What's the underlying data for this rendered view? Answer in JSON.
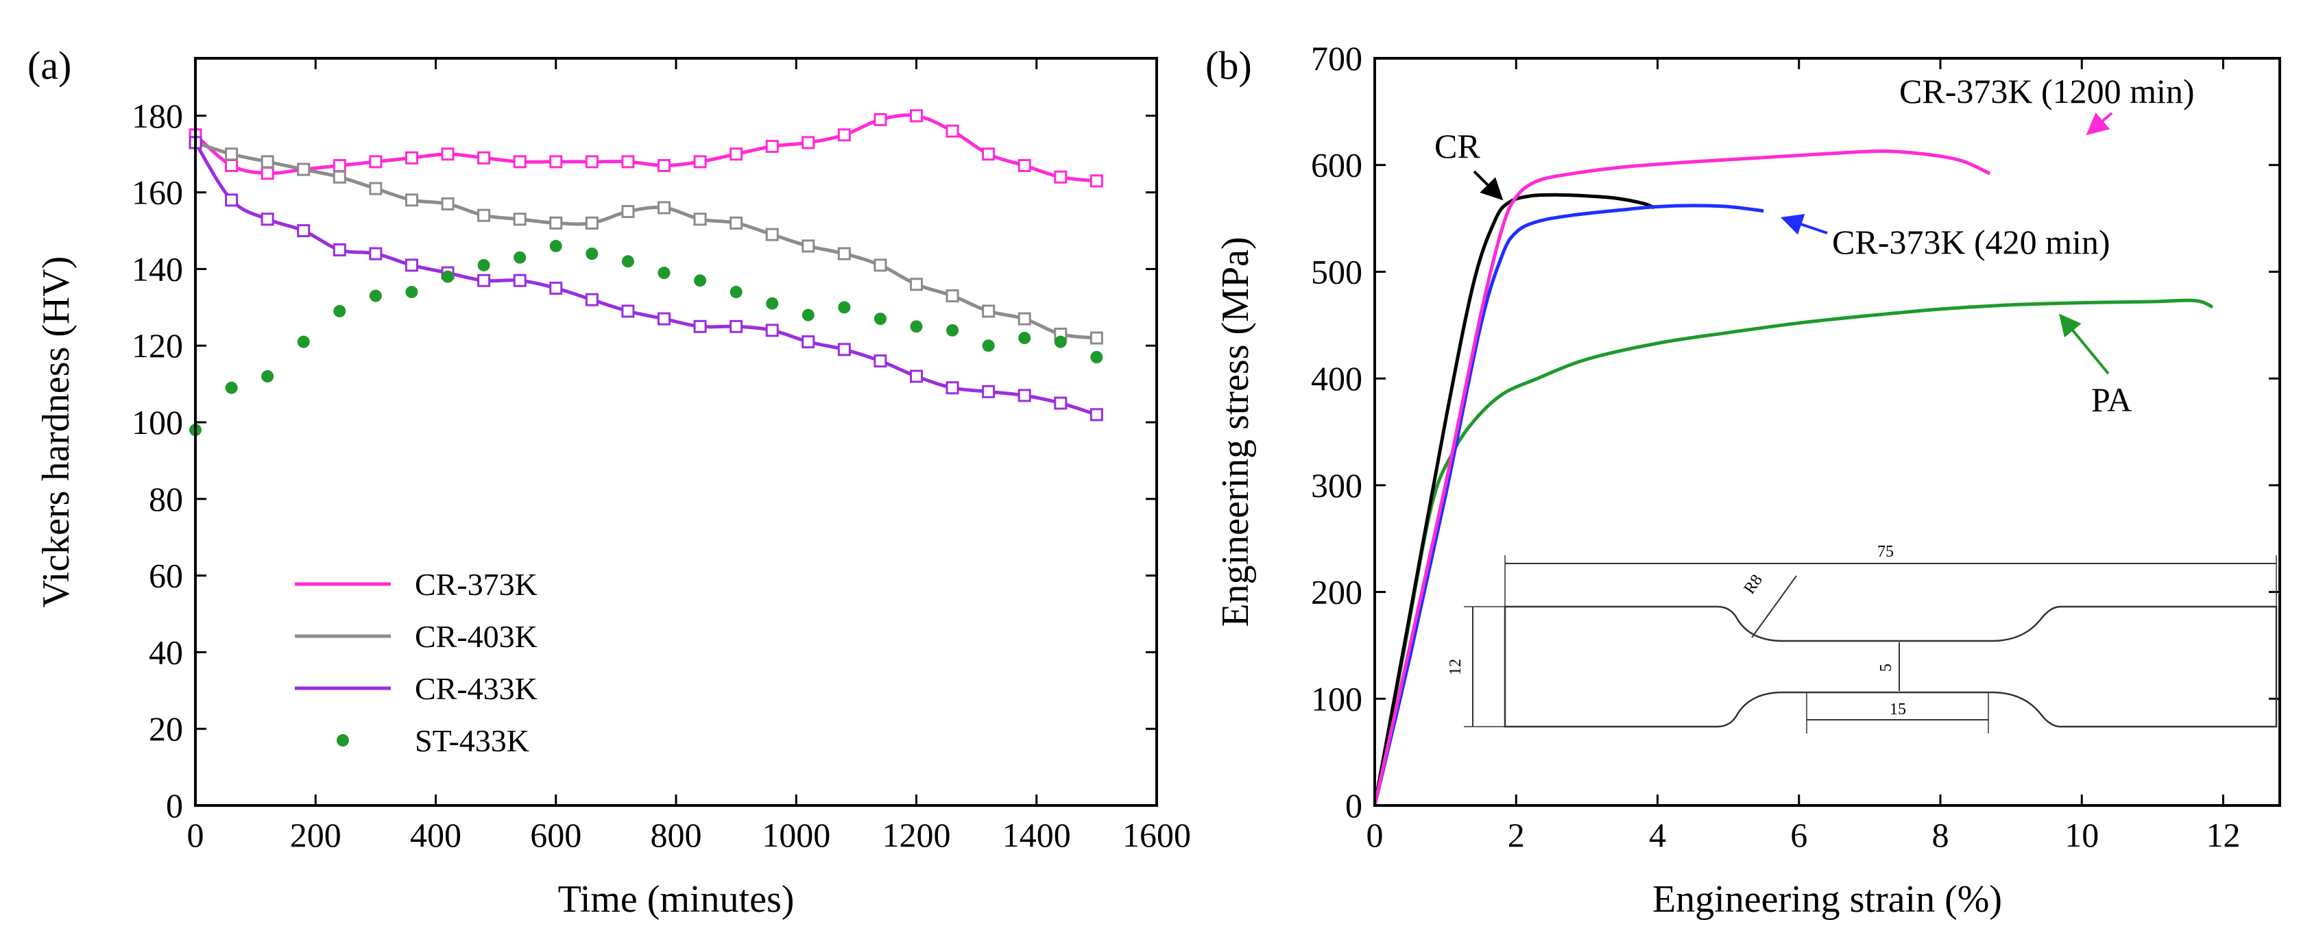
{
  "chart_data": [
    {
      "panel": "(a)",
      "type": "line",
      "xlabel": "Time (minutes)",
      "ylabel": "Vickers hardness (HV)",
      "xlim": [
        0,
        1600
      ],
      "ylim": [
        0,
        195
      ],
      "xticks": [
        0,
        200,
        400,
        600,
        800,
        1000,
        1200,
        1400,
        1600
      ],
      "yticks": [
        0,
        20,
        40,
        60,
        80,
        100,
        120,
        140,
        160,
        180
      ],
      "grid": false,
      "legend_position": "bottom-left",
      "series": [
        {
          "name": "CR-373K",
          "color": "#ff2bd6",
          "style": "line+markers",
          "x": [
            0,
            60,
            120,
            180,
            240,
            300,
            360,
            420,
            480,
            540,
            600,
            660,
            720,
            780,
            840,
            900,
            960,
            1020,
            1080,
            1140,
            1200,
            1260,
            1320,
            1380,
            1440,
            1500
          ],
          "y": [
            175,
            167,
            165,
            166,
            167,
            168,
            169,
            170,
            169,
            168,
            168,
            168,
            168,
            167,
            168,
            170,
            172,
            173,
            175,
            179,
            180,
            176,
            170,
            167,
            164,
            163
          ]
        },
        {
          "name": "CR-403K",
          "color": "#8c8c8c",
          "style": "line+markers",
          "x": [
            0,
            60,
            120,
            180,
            240,
            300,
            360,
            420,
            480,
            540,
            600,
            660,
            720,
            780,
            840,
            900,
            960,
            1020,
            1080,
            1140,
            1200,
            1260,
            1320,
            1380,
            1440,
            1500
          ],
          "y": [
            173,
            170,
            168,
            166,
            164,
            161,
            158,
            157,
            154,
            153,
            152,
            152,
            155,
            156,
            153,
            152,
            149,
            146,
            144,
            141,
            136,
            133,
            129,
            127,
            123,
            122
          ]
        },
        {
          "name": "CR-433K",
          "color": "#9b2ee0",
          "style": "line+markers",
          "x": [
            0,
            60,
            120,
            180,
            240,
            300,
            360,
            420,
            480,
            540,
            600,
            660,
            720,
            780,
            840,
            900,
            960,
            1020,
            1080,
            1140,
            1200,
            1260,
            1320,
            1380,
            1440,
            1500
          ],
          "y": [
            173,
            158,
            153,
            150,
            145,
            144,
            141,
            139,
            137,
            137,
            135,
            132,
            129,
            127,
            125,
            125,
            124,
            121,
            119,
            116,
            112,
            109,
            108,
            107,
            105,
            102
          ]
        },
        {
          "name": "ST-433K",
          "color": "#1e9a2c",
          "style": "markers",
          "x": [
            0,
            60,
            120,
            180,
            240,
            300,
            360,
            420,
            480,
            540,
            600,
            660,
            720,
            780,
            840,
            900,
            960,
            1020,
            1080,
            1140,
            1200,
            1260,
            1320,
            1380,
            1440,
            1500
          ],
          "y": [
            98,
            109,
            112,
            121,
            129,
            133,
            134,
            138,
            141,
            143,
            146,
            144,
            142,
            139,
            137,
            134,
            131,
            128,
            130,
            127,
            125,
            124,
            120,
            122,
            121,
            117
          ]
        }
      ]
    },
    {
      "panel": "(b)",
      "type": "line",
      "xlabel": "Engineering strain (%)",
      "ylabel": "Engineering stress (MPa)",
      "xlim": [
        0,
        12.8
      ],
      "ylim": [
        0,
        700
      ],
      "xticks": [
        0,
        2,
        4,
        6,
        8,
        10,
        12
      ],
      "yticks": [
        0,
        100,
        200,
        300,
        400,
        500,
        600,
        700
      ],
      "grid": false,
      "series": [
        {
          "name": "CR",
          "color": "#000000",
          "x": [
            0,
            0.5,
            1.0,
            1.4,
            1.7,
            1.9,
            2.2,
            2.6,
            3.0,
            3.4,
            3.8,
            3.95
          ],
          "y": [
            0,
            180,
            360,
            490,
            548,
            565,
            571,
            572,
            571,
            569,
            564,
            560
          ]
        },
        {
          "name": "CR-373K (420 min)",
          "color": "#1f2fff",
          "x": [
            0,
            0.5,
            1.0,
            1.5,
            1.8,
            2.0,
            2.3,
            2.8,
            3.5,
            4.0,
            4.5,
            5.0,
            5.5
          ],
          "y": [
            0,
            140,
            290,
            450,
            515,
            537,
            547,
            553,
            558,
            561,
            562,
            561,
            557
          ]
        },
        {
          "name": "CR-373K (1200 min)",
          "color": "#ff2bd6",
          "x": [
            0,
            0.5,
            1.0,
            1.5,
            1.8,
            2.0,
            2.3,
            2.8,
            3.5,
            4.5,
            5.5,
            6.5,
            7.2,
            7.8,
            8.3,
            8.7
          ],
          "y": [
            0,
            150,
            300,
            460,
            540,
            570,
            585,
            592,
            598,
            603,
            607,
            611,
            613,
            610,
            604,
            592
          ]
        },
        {
          "name": "PA",
          "color": "#1e9a2c",
          "x": [
            0,
            0.4,
            0.8,
            1.1,
            1.4,
            1.8,
            2.3,
            3.0,
            4.0,
            5.0,
            6.0,
            7.0,
            8.0,
            9.0,
            10.0,
            11.0,
            11.6,
            11.85
          ],
          "y": [
            0,
            140,
            280,
            330,
            360,
            385,
            400,
            418,
            433,
            443,
            452,
            459,
            465,
            469,
            471,
            472,
            473,
            467
          ]
        }
      ],
      "annotations": [
        {
          "text": "CR",
          "target_series": "CR"
        },
        {
          "text": "CR-373K (1200 min)",
          "target_series": "CR-373K (1200 min)"
        },
        {
          "text": "CR-373K (420 min)",
          "target_series": "CR-373K (420 min)"
        },
        {
          "text": "PA",
          "target_series": "PA"
        }
      ],
      "inset": {
        "description": "tensile specimen drawing",
        "dimensions": {
          "total_length": "75",
          "radius": "R8",
          "width": "12",
          "gauge_width": "5",
          "gauge_length": "15"
        }
      }
    }
  ]
}
